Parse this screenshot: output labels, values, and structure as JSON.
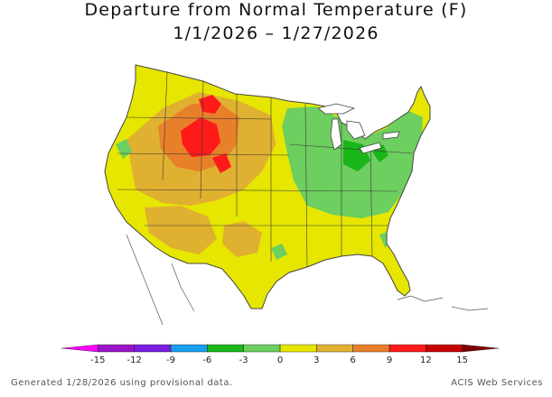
{
  "header": {
    "title": "Departure from Normal Temperature (F)",
    "date_range": "1/1/2026 – 1/27/2026"
  },
  "legend": {
    "ticks": [
      "-15",
      "-12",
      "-9",
      "-6",
      "-3",
      "0",
      "3",
      "6",
      "9",
      "12",
      "15"
    ],
    "colors": [
      "#ff00ff",
      "#9a15c7",
      "#7a1ee0",
      "#1a9ff0",
      "#19b519",
      "#6ccf5f",
      "#e6e600",
      "#e0b030",
      "#e8802a",
      "#ff1a1a",
      "#c80000",
      "#7d0000"
    ]
  },
  "palette": {
    "water": "#ffffff",
    "country_outline": "#444444",
    "state_lines": "#3a3a3a"
  },
  "footer": {
    "left": "Generated 1/28/2026 using provisional data.",
    "right": "ACIS Web Services"
  }
}
